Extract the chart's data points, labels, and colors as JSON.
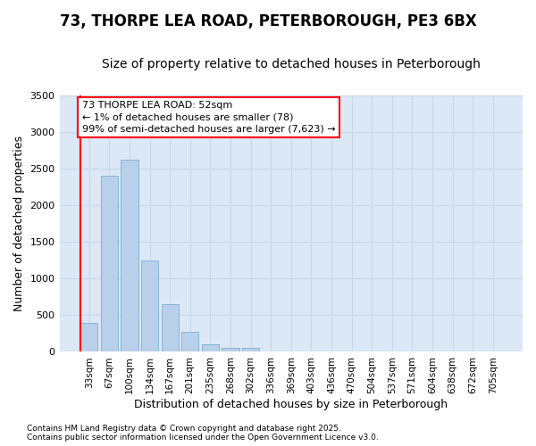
{
  "title_line1": "73, THORPE LEA ROAD, PETERBOROUGH, PE3 6BX",
  "title_line2": "Size of property relative to detached houses in Peterborough",
  "xlabel": "Distribution of detached houses by size in Peterborough",
  "ylabel": "Number of detached properties",
  "footer_line1": "Contains HM Land Registry data © Crown copyright and database right 2025.",
  "footer_line2": "Contains public sector information licensed under the Open Government Licence v3.0.",
  "categories": [
    "33sqm",
    "67sqm",
    "100sqm",
    "134sqm",
    "167sqm",
    "201sqm",
    "235sqm",
    "268sqm",
    "302sqm",
    "336sqm",
    "369sqm",
    "403sqm",
    "436sqm",
    "470sqm",
    "504sqm",
    "537sqm",
    "571sqm",
    "604sqm",
    "638sqm",
    "672sqm",
    "705sqm"
  ],
  "values": [
    400,
    2400,
    2620,
    1250,
    650,
    275,
    100,
    55,
    55,
    0,
    0,
    0,
    0,
    0,
    0,
    0,
    0,
    0,
    0,
    0,
    0
  ],
  "bar_color": "#b8d0ea",
  "bar_edge_color": "#7bafd4",
  "grid_color": "#c8d8ea",
  "plot_bg_color": "#dce8f5",
  "fig_bg_color": "#ffffff",
  "annotation_line1": "73 THORPE LEA ROAD: 52sqm",
  "annotation_line2": "← 1% of detached houses are smaller (78)",
  "annotation_line3": "99% of semi-detached houses are larger (7,623) →",
  "annotation_box_color": "white",
  "annotation_box_edge": "red",
  "red_line_x": -0.42,
  "ylim": [
    0,
    3500
  ],
  "yticks": [
    0,
    500,
    1000,
    1500,
    2000,
    2500,
    3000,
    3500
  ],
  "title1_fontsize": 12,
  "title2_fontsize": 10,
  "ylabel_fontsize": 9,
  "xlabel_fontsize": 9,
  "tick_fontsize": 8,
  "xtick_fontsize": 7.5,
  "ann_fontsize": 8,
  "footer_fontsize": 6.5
}
